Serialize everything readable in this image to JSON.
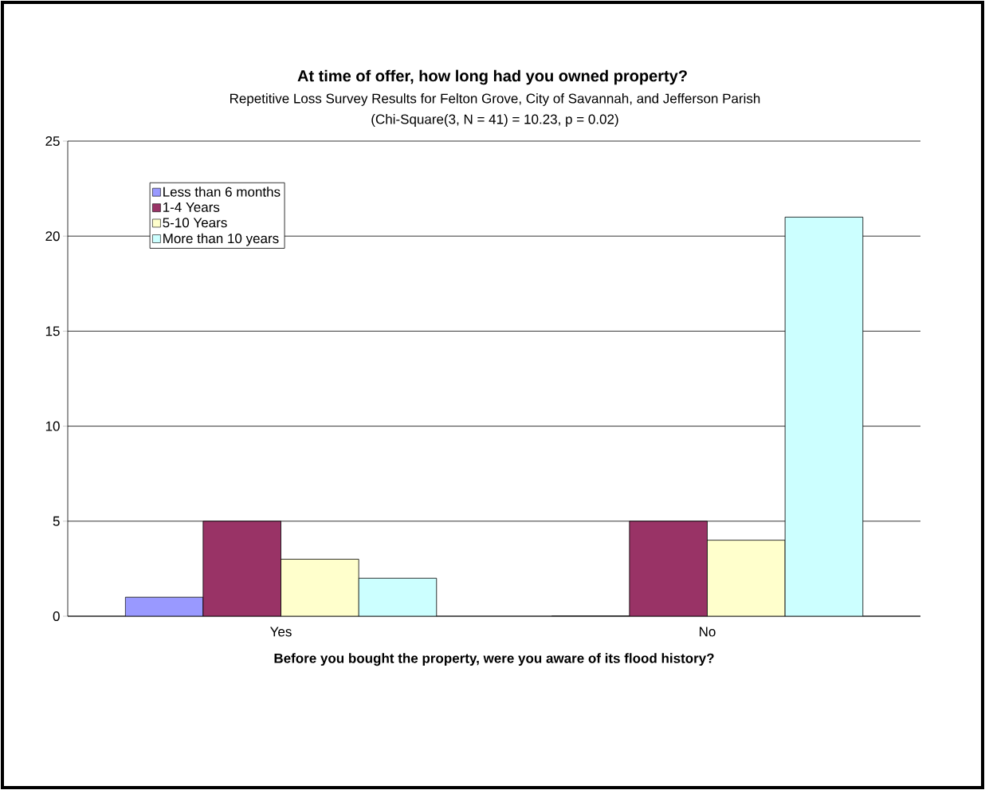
{
  "chart_data": {
    "type": "bar",
    "title": "At time of offer, how long had you owned property?",
    "subtitle": "Repetitive Loss Survey Results for Felton Grove, City of Savannah,  and Jefferson Parish",
    "annotations": [
      "(Chi-Square(3, N = 41) = 10.23, p = 0.02)"
    ],
    "xlabel": "Before you bought the property, were you aware of its flood history?",
    "categories": [
      "Yes",
      "No"
    ],
    "series": [
      {
        "name": "Less than 6 months",
        "color": "#9999ff",
        "values": [
          1,
          0
        ]
      },
      {
        "name": "1-4 Years",
        "color": "#993366",
        "values": [
          5,
          5
        ]
      },
      {
        "name": "5-10 Years",
        "color": "#ffffcc",
        "values": [
          3,
          4
        ]
      },
      {
        "name": "More than 10 years",
        "color": "#ccffff",
        "values": [
          2,
          21
        ]
      }
    ],
    "ylim": [
      0,
      25
    ],
    "yticks": [
      0,
      5,
      10,
      15,
      20,
      25
    ],
    "grid": "y",
    "legend": "top left"
  }
}
